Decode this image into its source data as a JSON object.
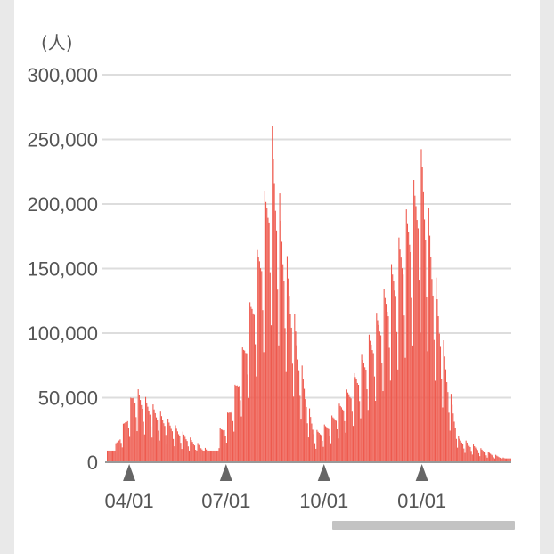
{
  "chart_data": {
    "type": "bar",
    "unit_label": "(人)",
    "y_ticks": [
      0,
      50000,
      100000,
      150000,
      200000,
      250000,
      300000
    ],
    "y_tick_labels": [
      "0",
      "50,000",
      "100,000",
      "150,000",
      "200,000",
      "250,000",
      "300,000"
    ],
    "ylim": [
      0,
      300000
    ],
    "x_tick_labels": [
      "04/01",
      "07/01",
      "10/01",
      "01/01"
    ],
    "x_tick_day_index": [
      21,
      112,
      204,
      296
    ],
    "grid": true,
    "bar_color": "#ee5a4e",
    "day_count": 380,
    "waves": [
      {
        "start_day": 0,
        "peak_day": 25,
        "end_day": 105,
        "base_level": 30000,
        "weekday_peak": 60000
      },
      {
        "start_day": 105,
        "peak_day": 155,
        "end_day": 195,
        "base_level": 15000,
        "weekday_peak": 260000
      },
      {
        "start_day": 195,
        "peak_day": 296,
        "end_day": 330,
        "base_level": 15000,
        "weekday_peak": 246000
      },
      {
        "start_day": 330,
        "peak_day": 330,
        "end_day": 380,
        "base_level": 5000,
        "weekday_peak": 20000
      }
    ]
  },
  "colors": {
    "axis": "#999999",
    "grid": "#dddddd",
    "marker": "#666666",
    "scrollbar": "#c3c3c3"
  },
  "icons": {
    "tick_marker": "triangle-up-icon",
    "scroll_thumb": "horizontal-scrollbar-thumb"
  }
}
